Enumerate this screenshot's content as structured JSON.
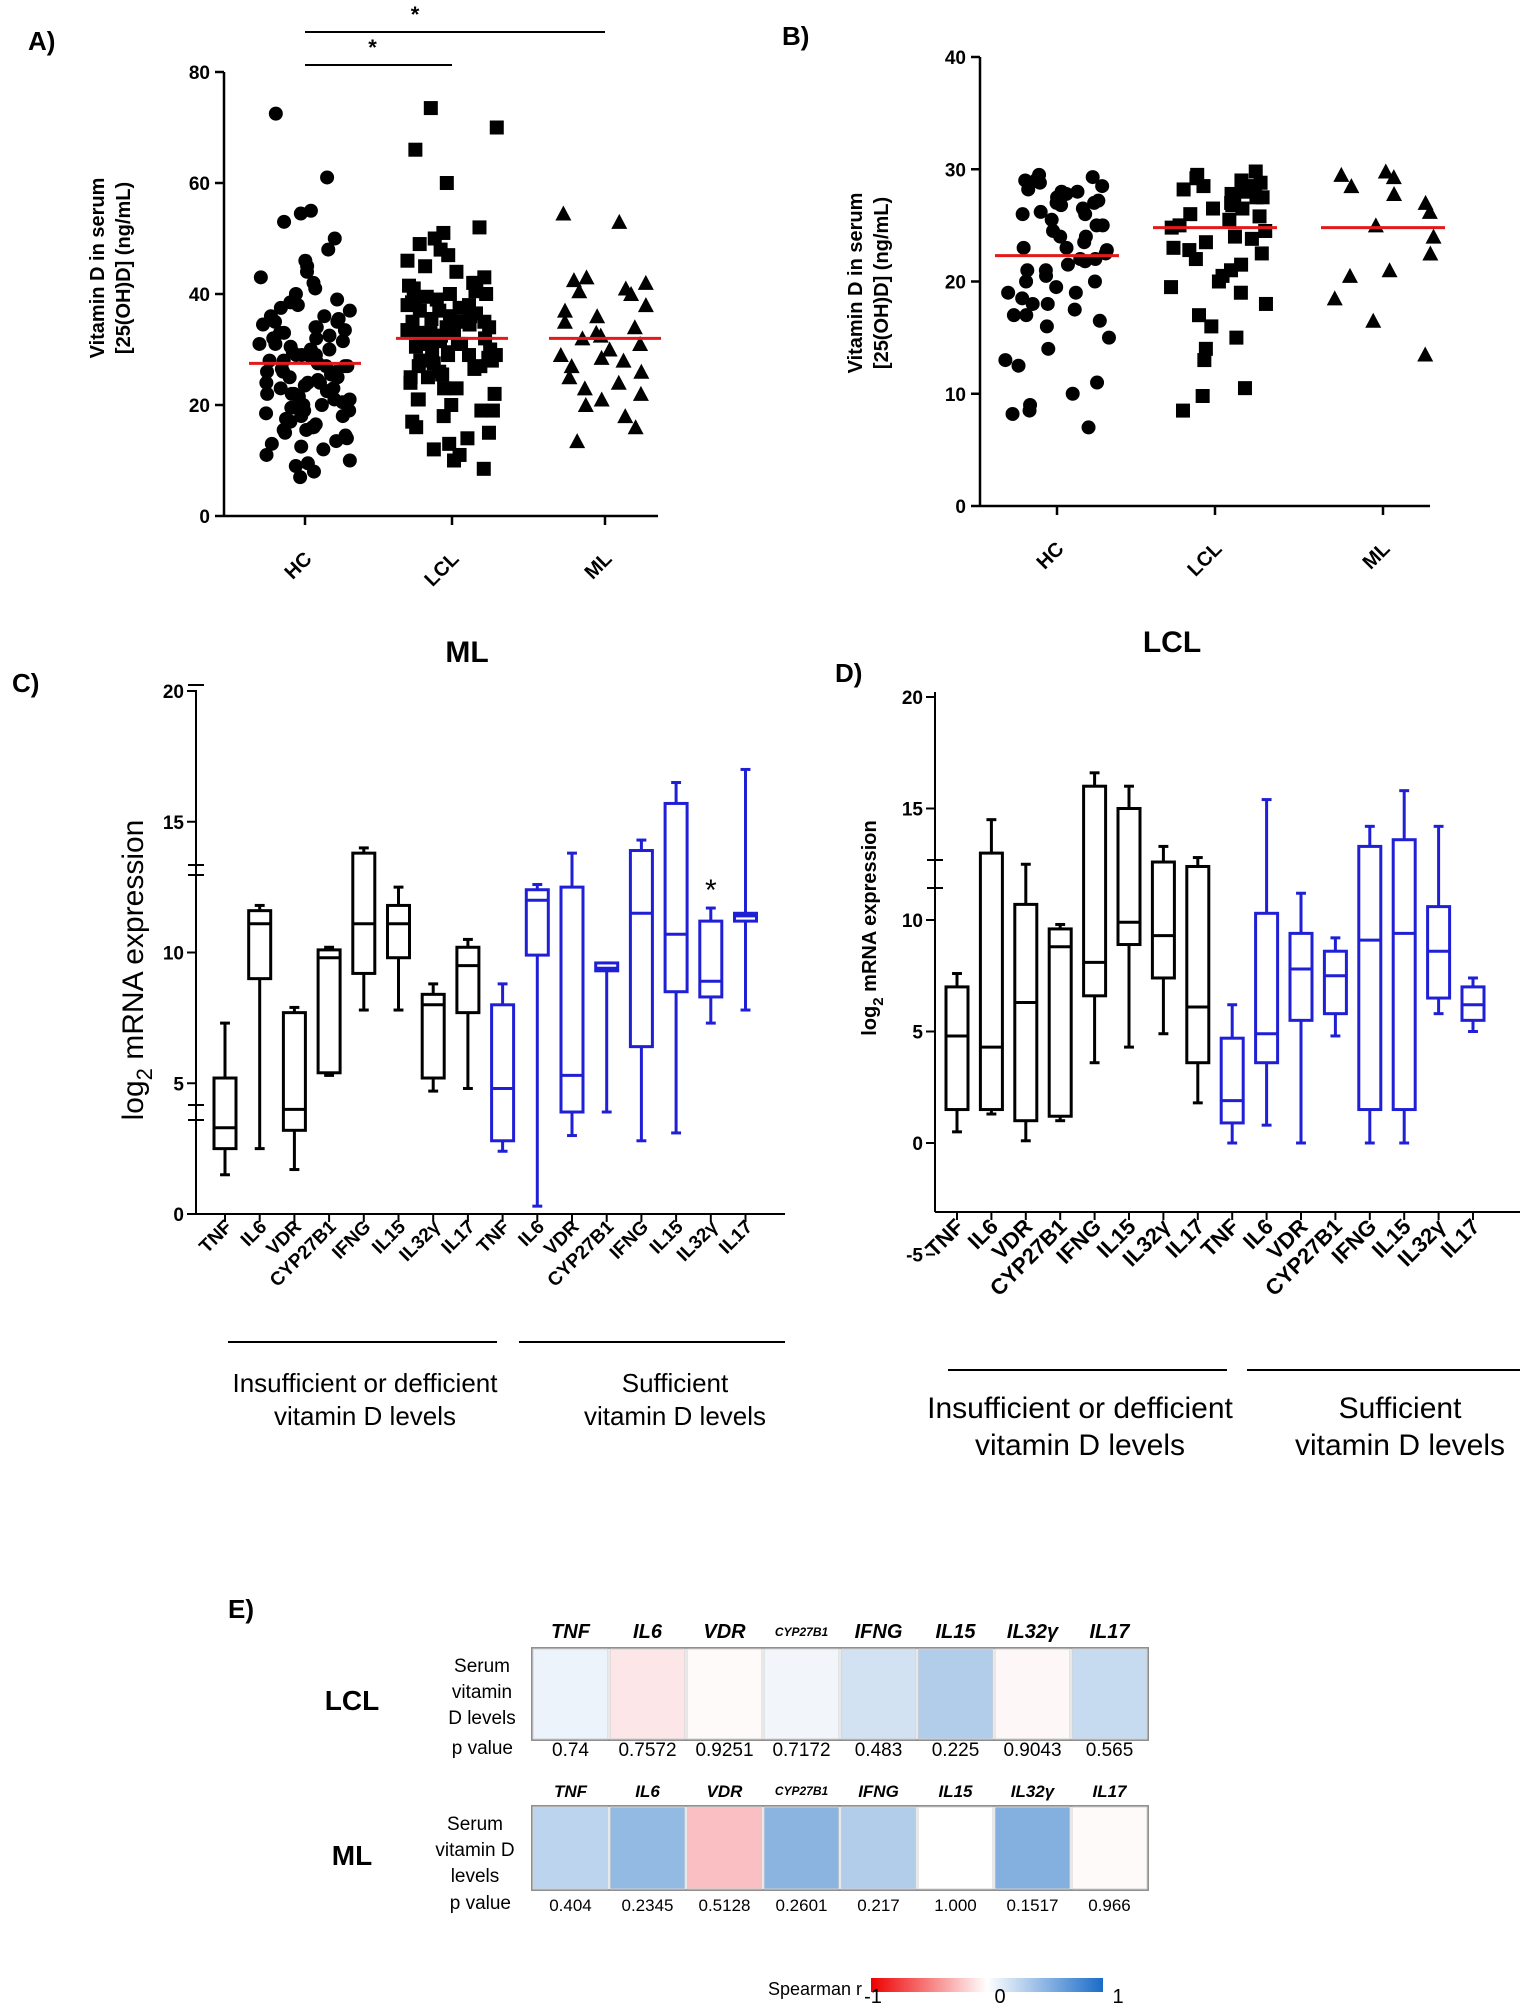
{
  "panels": {
    "A": "A)",
    "B": "B)",
    "C": "C)",
    "D": "D)",
    "E": "E)"
  },
  "colors": {
    "black": "#000000",
    "blue": "#1f1fd6",
    "median_red": "#e31a1c",
    "heat_neg": "#e8000b",
    "heat_pos": "#1f6fc4"
  },
  "chart_data": [
    {
      "id": "A",
      "type": "scatter",
      "title": "",
      "ylabel_line1": "Vitamin D in serum",
      "ylabel_line2": "[25(OH)D] (ng/mL)",
      "xlabel": "",
      "categories": [
        "HC",
        "LCL",
        "ML"
      ],
      "ylim": [
        0,
        80
      ],
      "yticks": [
        0,
        20,
        40,
        60,
        80
      ],
      "markers": [
        "circle",
        "square",
        "triangle"
      ],
      "medians": [
        27.5,
        32,
        32
      ],
      "significance": [
        {
          "from": "HC",
          "to": "LCL",
          "label": "*"
        },
        {
          "from": "HC",
          "to": "ML",
          "label": "*"
        }
      ],
      "series": [
        {
          "name": "HC",
          "values": [
            72.5,
            61,
            55,
            54.5,
            53,
            50,
            48,
            46,
            45,
            44,
            43,
            42,
            41,
            40,
            39,
            38.5,
            38,
            37.5,
            37,
            36,
            35.5,
            35,
            34.5,
            34,
            33.5,
            33,
            32.5,
            32,
            31.5,
            31,
            30.5,
            30,
            29.5,
            29,
            28.5,
            28,
            27.5,
            27,
            26.5,
            26,
            25.5,
            25,
            24.5,
            24,
            23.5,
            23,
            22.5,
            22,
            21.5,
            21,
            20.5,
            20,
            19.5,
            19,
            18.5,
            18,
            17.5,
            17,
            16.5,
            16,
            15.5,
            15,
            14.5,
            14,
            13,
            12,
            11,
            10,
            9.5,
            9,
            8,
            7,
            29,
            31,
            27,
            25,
            23,
            21,
            19,
            28,
            26,
            24,
            22,
            20,
            30,
            32,
            34,
            36,
            18,
            16,
            35,
            33,
            27,
            29,
            24,
            26,
            22,
            13.5,
            12.5,
            15.5
          ]
        },
        {
          "name": "LCL",
          "values": [
            73.5,
            70,
            66,
            60,
            52,
            51,
            50,
            49,
            48,
            47,
            46,
            45,
            44,
            43,
            42,
            41.5,
            41,
            40.5,
            40,
            39.5,
            39,
            38.5,
            38,
            37.5,
            37,
            36.5,
            36,
            35.5,
            35,
            34.5,
            34,
            33.5,
            33,
            32.5,
            32,
            31.5,
            31,
            30.5,
            30,
            29.5,
            29,
            28.5,
            28,
            27.5,
            27,
            26.5,
            26,
            25.5,
            25,
            24,
            23,
            22,
            21,
            20,
            19,
            18,
            17,
            16,
            15,
            14,
            13,
            12,
            11,
            10,
            8.5,
            35,
            33,
            31,
            29,
            37,
            39,
            34,
            32,
            30,
            28,
            36,
            38,
            40,
            27,
            25,
            23,
            21,
            19,
            33,
            31,
            35,
            29,
            42
          ]
        },
        {
          "name": "ML",
          "values": [
            54.5,
            53,
            43,
            42.5,
            42,
            41,
            40.5,
            40,
            38,
            37,
            36,
            35,
            34,
            33,
            32.5,
            32,
            31,
            30,
            29,
            28.5,
            28,
            27,
            26,
            25,
            24,
            23,
            22,
            21,
            20,
            18,
            16,
            13.5
          ]
        }
      ]
    },
    {
      "id": "B",
      "type": "scatter",
      "title": "",
      "ylabel_line1": "Vitamin D in serum",
      "ylabel_line2": "[25(OH)D] (ng/mL)",
      "xlabel": "",
      "categories": [
        "HC",
        "LCL",
        "ML"
      ],
      "ylim": [
        0,
        40
      ],
      "yticks": [
        0,
        10,
        20,
        30,
        40
      ],
      "markers": [
        "circle",
        "square",
        "triangle"
      ],
      "medians": [
        22.3,
        24.8,
        24.8
      ],
      "series": [
        {
          "name": "HC",
          "values": [
            29.5,
            29.3,
            29,
            28.8,
            28.5,
            28.2,
            28,
            27.8,
            27.5,
            27.2,
            27,
            26.8,
            26.5,
            26.2,
            26,
            25.5,
            25,
            24.5,
            24,
            23.5,
            23,
            22.5,
            22,
            21.5,
            21,
            20.5,
            20,
            19.5,
            19,
            18.5,
            18,
            17.5,
            17,
            16.5,
            16,
            15,
            14,
            13,
            12.5,
            11,
            10,
            9,
            8.5,
            8.2,
            7,
            28,
            27,
            26,
            25,
            24,
            23,
            22,
            21,
            20,
            19,
            18,
            17,
            29,
            22.8,
            21.8
          ]
        },
        {
          "name": "LCL",
          "values": [
            29.8,
            29.5,
            29.2,
            29,
            28.8,
            28.5,
            28.2,
            28,
            27.8,
            27.5,
            27.2,
            27,
            26.8,
            26.5,
            26,
            25.5,
            25,
            24.5,
            24,
            23.5,
            23,
            22.5,
            22,
            21.5,
            21,
            20.5,
            20,
            19.5,
            19,
            18,
            17,
            16,
            15,
            14,
            13,
            10.5,
            9.8,
            8.5,
            28.5,
            27.5,
            26.5,
            25.8,
            24.8,
            23.8,
            22.8
          ]
        },
        {
          "name": "ML",
          "values": [
            29.8,
            29.5,
            29.3,
            28.5,
            27.8,
            27,
            26.2,
            25,
            24,
            22.5,
            21,
            20.5,
            18.5,
            16.5,
            13.5
          ]
        }
      ]
    },
    {
      "id": "C",
      "type": "box",
      "title": "ML",
      "ylabel": "log2 mRNA expression",
      "ylabel_main": "log",
      "ylabel_sub": "2",
      "ylabel_rest": " mRNA expression",
      "yticks": [
        "0",
        "5",
        "10",
        "15",
        "20"
      ],
      "categories": [
        "TNF",
        "IL6",
        "VDR",
        "CYP27B1",
        "IFNG",
        "IL15",
        "IL32γ",
        "IL17",
        "TNF",
        "IL6",
        "VDR",
        "CYP27B1",
        "IFNG",
        "IL15",
        "IL32γ",
        "IL17"
      ],
      "group_labels": [
        {
          "line1": "Insufficient or defficient",
          "line2": "vitamin D levels"
        },
        {
          "line1": "Sufficient",
          "line2": "vitamin D levels"
        }
      ],
      "annotation": "*",
      "series": [
        {
          "name": "Insufficient or defficient vitamin D levels",
          "color": "black",
          "boxes": [
            {
              "min": 1.5,
              "q1": 2.5,
              "median": 3.3,
              "q3": 5.2,
              "max": 7.3
            },
            {
              "min": 2.5,
              "q1": 9.0,
              "median": 11.1,
              "q3": 11.6,
              "max": 11.8
            },
            {
              "min": 1.7,
              "q1": 3.2,
              "median": 4.0,
              "q3": 7.7,
              "max": 7.9
            },
            {
              "min": 5.3,
              "q1": 5.4,
              "median": 9.8,
              "q3": 10.1,
              "max": 10.2
            },
            {
              "min": 7.8,
              "q1": 9.2,
              "median": 11.1,
              "q3": 13.8,
              "max": 14.0
            },
            {
              "min": 7.8,
              "q1": 9.8,
              "median": 11.1,
              "q3": 11.8,
              "max": 12.5
            },
            {
              "min": 4.7,
              "q1": 5.2,
              "median": 8.0,
              "q3": 8.4,
              "max": 8.8
            },
            {
              "min": 4.8,
              "q1": 7.7,
              "median": 9.5,
              "q3": 10.2,
              "max": 10.5
            }
          ]
        },
        {
          "name": "Sufficient vitamin D levels",
          "color": "blue",
          "boxes": [
            {
              "min": 2.4,
              "q1": 2.8,
              "median": 4.8,
              "q3": 8.0,
              "max": 8.8
            },
            {
              "min": 0.3,
              "q1": 9.9,
              "median": 12.0,
              "q3": 12.4,
              "max": 12.6
            },
            {
              "min": 3.0,
              "q1": 3.9,
              "median": 5.3,
              "q3": 12.5,
              "max": 13.8
            },
            {
              "min": 3.9,
              "q1": 9.3,
              "median": 9.4,
              "q3": 9.6,
              "max": 9.6
            },
            {
              "min": 2.8,
              "q1": 6.4,
              "median": 11.5,
              "q3": 13.9,
              "max": 14.3
            },
            {
              "min": 3.1,
              "q1": 8.5,
              "median": 10.7,
              "q3": 15.7,
              "max": 16.5
            },
            {
              "min": 7.3,
              "q1": 8.3,
              "median": 8.9,
              "q3": 11.2,
              "max": 11.7
            },
            {
              "min": 7.8,
              "q1": 11.2,
              "median": 11.4,
              "q3": 11.5,
              "max": 17.0
            }
          ]
        }
      ]
    },
    {
      "id": "D",
      "type": "box",
      "title": "LCL",
      "ylabel": "log2 mRNA expression",
      "ylabel_main": "log",
      "ylabel_sub": "2",
      "ylabel_rest": " mRNA expression",
      "yticks": [
        "-5",
        "0",
        "5",
        "10",
        "15",
        "20"
      ],
      "categories": [
        "TNF",
        "IL6",
        "VDR",
        "CYP27B1",
        "IFNG",
        "IL15",
        "IL32γ",
        "IL17",
        "TNF",
        "IL6",
        "VDR",
        "CYP27B1",
        "IFNG",
        "IL15",
        "IL32γ",
        "IL17"
      ],
      "group_labels": [
        {
          "line1": "Insufficient or defficient",
          "line2": "vitamin D levels"
        },
        {
          "line1": "Sufficient",
          "line2": "vitamin D levels"
        }
      ],
      "series": [
        {
          "name": "Insufficient or defficient vitamin D levels",
          "color": "black",
          "boxes": [
            {
              "min": 0.5,
              "q1": 1.5,
              "median": 4.8,
              "q3": 7.0,
              "max": 7.6
            },
            {
              "min": 1.3,
              "q1": 1.5,
              "median": 4.3,
              "q3": 13.0,
              "max": 14.5
            },
            {
              "min": 0.1,
              "q1": 1.0,
              "median": 6.3,
              "q3": 10.7,
              "max": 12.5
            },
            {
              "min": 1.0,
              "q1": 1.2,
              "median": 8.8,
              "q3": 9.6,
              "max": 9.8
            },
            {
              "min": 3.6,
              "q1": 6.6,
              "median": 8.1,
              "q3": 16.0,
              "max": 16.6
            },
            {
              "min": 4.3,
              "q1": 8.9,
              "median": 9.9,
              "q3": 15.0,
              "max": 16.0
            },
            {
              "min": 4.9,
              "q1": 7.4,
              "median": 9.3,
              "q3": 12.6,
              "max": 13.3
            },
            {
              "min": 1.8,
              "q1": 3.6,
              "median": 6.1,
              "q3": 12.4,
              "max": 12.8
            }
          ]
        },
        {
          "name": "Sufficient vitamin D levels",
          "color": "blue",
          "boxes": [
            {
              "min": 0.0,
              "q1": 0.9,
              "median": 1.9,
              "q3": 4.7,
              "max": 6.2
            },
            {
              "min": 0.8,
              "q1": 3.6,
              "median": 4.9,
              "q3": 10.3,
              "max": 15.4
            },
            {
              "min": 0.0,
              "q1": 5.5,
              "median": 7.8,
              "q3": 9.4,
              "max": 11.2
            },
            {
              "min": 4.8,
              "q1": 5.8,
              "median": 7.5,
              "q3": 8.6,
              "max": 9.2
            },
            {
              "min": 0.0,
              "q1": 1.5,
              "median": 9.1,
              "q3": 13.3,
              "max": 14.2
            },
            {
              "min": 0.0,
              "q1": 1.5,
              "median": 9.4,
              "q3": 13.6,
              "max": 15.8
            },
            {
              "min": 5.8,
              "q1": 6.5,
              "median": 8.6,
              "q3": 10.6,
              "max": 14.2
            },
            {
              "min": 5.0,
              "q1": 5.5,
              "median": 6.2,
              "q3": 7.0,
              "max": 7.4
            }
          ]
        }
      ]
    },
    {
      "id": "E",
      "type": "heatmap",
      "row_label_lines": [
        "Serum",
        "vitamin",
        "D levels"
      ],
      "row_label_lines_ml": [
        "Serum",
        "vitamin D",
        "levels"
      ],
      "p_label": "p value",
      "legend_title": "Spearman r",
      "legend_ticks": [
        "-1",
        "0",
        "1"
      ],
      "genes": [
        "TNF",
        "IL6",
        "VDR",
        "CYP27B1",
        "IFNG",
        "IL15",
        "IL32γ",
        "IL17"
      ],
      "rows": [
        {
          "name": "LCL",
          "r": [
            0.08,
            -0.1,
            -0.02,
            0.06,
            0.2,
            0.35,
            -0.03,
            0.25
          ],
          "p_values": [
            "0.74",
            "0.7572",
            "0.9251",
            "0.7172",
            "0.483",
            "0.225",
            "0.9043",
            "0.565"
          ]
        },
        {
          "name": "ML",
          "r": [
            0.3,
            0.48,
            -0.25,
            0.52,
            0.35,
            0.0,
            0.55,
            -0.02
          ],
          "p_values": [
            "0.404",
            "0.2345",
            "0.5128",
            "0.2601",
            "0.217",
            "1.000",
            "0.1517",
            "0.966"
          ]
        }
      ]
    }
  ]
}
